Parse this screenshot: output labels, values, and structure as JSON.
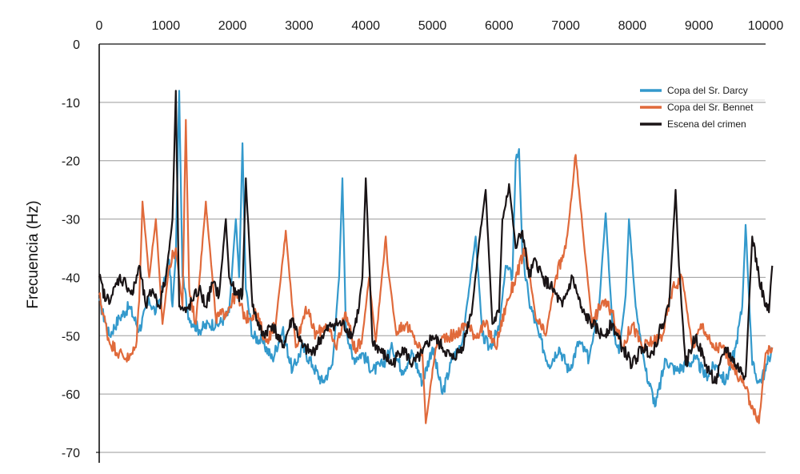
{
  "chart_data": {
    "type": "line",
    "ylabel": "Frecuencia (Hz)",
    "xlabel": "",
    "title": "",
    "xlim": [
      0,
      10000
    ],
    "ylim": [
      -70,
      0
    ],
    "x_ticks": [
      0,
      1000,
      2000,
      3000,
      4000,
      5000,
      6000,
      7000,
      8000,
      9000,
      10000
    ],
    "y_ticks": [
      0,
      -10,
      -20,
      -30,
      -40,
      -50,
      -60,
      -70
    ],
    "x_tick_labels": [
      "0",
      "1000",
      "2000",
      "3000",
      "4000",
      "5000",
      "6000",
      "7000",
      "8000",
      "9000",
      "10000"
    ],
    "y_tick_labels": [
      "0",
      "-10",
      "-20",
      "-30",
      "-40",
      "-50",
      "-60",
      "-70"
    ],
    "x_axis_position": "top",
    "grid": "horizontal",
    "legend_position": "top-right",
    "series": [
      {
        "name": "Copa del Sr. Darcy",
        "color": "#3399cc",
        "x": [
          0,
          150,
          300,
          450,
          600,
          750,
          850,
          950,
          1050,
          1100,
          1150,
          1200,
          1250,
          1350,
          1500,
          1650,
          1800,
          1950,
          2050,
          2100,
          2150,
          2200,
          2300,
          2450,
          2600,
          2750,
          2900,
          3050,
          3200,
          3350,
          3500,
          3600,
          3650,
          3700,
          3800,
          3950,
          4100,
          4250,
          4400,
          4550,
          4700,
          4850,
          5000,
          5150,
          5300,
          5450,
          5550,
          5650,
          5750,
          5850,
          6000,
          6100,
          6200,
          6250,
          6300,
          6350,
          6450,
          6600,
          6750,
          6900,
          7050,
          7200,
          7350,
          7500,
          7600,
          7700,
          7800,
          7900,
          7950,
          8050,
          8200,
          8350,
          8500,
          8650,
          8800,
          8950,
          9100,
          9250,
          9400,
          9550,
          9650,
          9700,
          9800,
          9900,
          10000,
          10100
        ],
        "y": [
          -44,
          -50,
          -47,
          -45,
          -49,
          -44,
          -46,
          -42,
          -37,
          -45,
          -36,
          -8,
          -40,
          -47,
          -49,
          -48,
          -48,
          -46,
          -30,
          -40,
          -17,
          -42,
          -50,
          -51,
          -54,
          -49,
          -56,
          -52,
          -55,
          -58,
          -55,
          -40,
          -23,
          -48,
          -54,
          -53,
          -56,
          -55,
          -52,
          -56,
          -53,
          -58,
          -52,
          -60,
          -54,
          -51,
          -42,
          -33,
          -50,
          -52,
          -49,
          -38,
          -40,
          -20,
          -18,
          -36,
          -44,
          -50,
          -55,
          -52,
          -56,
          -51,
          -54,
          -45,
          -29,
          -48,
          -53,
          -43,
          -30,
          -45,
          -56,
          -62,
          -54,
          -56,
          -55,
          -54,
          -57,
          -55,
          -58,
          -52,
          -45,
          -31,
          -55,
          -58,
          -56,
          -52
        ]
      },
      {
        "name": "Copa del Sr. Bennet",
        "color": "#e06a3b",
        "x": [
          0,
          150,
          300,
          450,
          550,
          600,
          650,
          750,
          850,
          950,
          1050,
          1150,
          1250,
          1300,
          1350,
          1450,
          1600,
          1750,
          1900,
          2050,
          2200,
          2350,
          2500,
          2650,
          2800,
          2950,
          3100,
          3250,
          3400,
          3550,
          3700,
          3850,
          3950,
          4050,
          4150,
          4300,
          4350,
          4450,
          4600,
          4750,
          4850,
          4900,
          5050,
          5200,
          5350,
          5500,
          5650,
          5800,
          5950,
          6100,
          6250,
          6400,
          6550,
          6700,
          6850,
          7000,
          7100,
          7150,
          7200,
          7300,
          7400,
          7550,
          7700,
          7850,
          8000,
          8150,
          8300,
          8450,
          8600,
          8750,
          8900,
          9050,
          9200,
          9350,
          9500,
          9650,
          9800,
          9900,
          10000,
          10100
        ],
        "y": [
          -43,
          -51,
          -53,
          -54,
          -52,
          -44,
          -27,
          -40,
          -30,
          -48,
          -38,
          -35,
          -45,
          -13,
          -42,
          -48,
          -27,
          -47,
          -46,
          -43,
          -47,
          -46,
          -51,
          -48,
          -32,
          -52,
          -45,
          -50,
          -48,
          -52,
          -46,
          -53,
          -50,
          -40,
          -51,
          -33,
          -40,
          -49,
          -48,
          -51,
          -53,
          -65,
          -52,
          -50,
          -50,
          -48,
          -50,
          -48,
          -52,
          -45,
          -40,
          -35,
          -47,
          -50,
          -40,
          -35,
          -25,
          -19,
          -25,
          -37,
          -48,
          -44,
          -46,
          -52,
          -48,
          -52,
          -51,
          -50,
          -42,
          -40,
          -52,
          -48,
          -52,
          -52,
          -55,
          -58,
          -62,
          -65,
          -53,
          -52
        ]
      },
      {
        "name": "Escena del crimen",
        "color": "#1a1416",
        "x": [
          0,
          100,
          200,
          300,
          400,
          500,
          600,
          700,
          800,
          900,
          1000,
          1100,
          1150,
          1200,
          1300,
          1400,
          1500,
          1600,
          1700,
          1800,
          1900,
          1950,
          2050,
          2150,
          2200,
          2300,
          2450,
          2600,
          2750,
          2900,
          3050,
          3200,
          3350,
          3500,
          3650,
          3800,
          3900,
          3950,
          4000,
          4100,
          4250,
          4400,
          4550,
          4700,
          4850,
          5000,
          5150,
          5300,
          5450,
          5600,
          5700,
          5800,
          5900,
          6000,
          6050,
          6150,
          6250,
          6350,
          6450,
          6550,
          6650,
          6800,
          6950,
          7100,
          7250,
          7400,
          7550,
          7700,
          7850,
          8000,
          8150,
          8300,
          8450,
          8550,
          8650,
          8700,
          8800,
          8950,
          9100,
          9250,
          9400,
          9550,
          9700,
          9800,
          9900,
          10000,
          10050,
          10100
        ],
        "y": [
          -40,
          -44,
          -43,
          -40,
          -41,
          -43,
          -38,
          -45,
          -42,
          -45,
          -40,
          -30,
          -8,
          -45,
          -46,
          -44,
          -42,
          -45,
          -41,
          -43,
          -30,
          -40,
          -43,
          -43,
          -23,
          -45,
          -50,
          -48,
          -52,
          -47,
          -52,
          -53,
          -50,
          -48,
          -48,
          -50,
          -45,
          -40,
          -23,
          -51,
          -53,
          -55,
          -52,
          -55,
          -53,
          -50,
          -52,
          -54,
          -52,
          -45,
          -34,
          -25,
          -48,
          -46,
          -30,
          -24,
          -35,
          -32,
          -40,
          -37,
          -40,
          -42,
          -45,
          -40,
          -46,
          -48,
          -50,
          -48,
          -52,
          -55,
          -52,
          -53,
          -48,
          -45,
          -25,
          -38,
          -55,
          -50,
          -55,
          -58,
          -52,
          -55,
          -57,
          -33,
          -40,
          -45,
          -46,
          -38
        ]
      }
    ]
  }
}
